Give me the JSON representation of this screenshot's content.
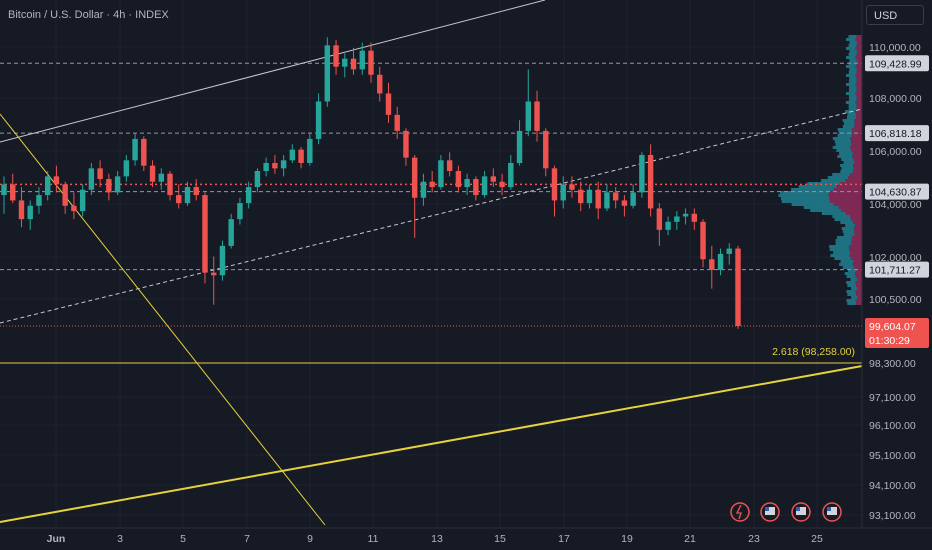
{
  "header": {
    "title": "Bitcoin / U.S. Dollar · 4h · INDEX",
    "currency": "USD"
  },
  "colors": {
    "background": "#161a25",
    "up": "#26a69a",
    "down": "#ef5350",
    "fib": "#e6d23c",
    "profile_up": "#1f7b8c",
    "profile_down": "#8a2a5a"
  },
  "chart_data": {
    "type": "candlestick",
    "y_ticks": [
      "110,000.00",
      "108,000.00",
      "106,000.00",
      "104,000.00",
      "102,000.00",
      "100,500.00",
      "98,300.00",
      "97,100.00",
      "96,100.00",
      "95,100.00",
      "94,100.00",
      "93,100.00"
    ],
    "x_ticks": [
      "Jun",
      "3",
      "5",
      "7",
      "9",
      "11",
      "13",
      "15",
      "17",
      "19",
      "21",
      "23",
      "25"
    ],
    "price_labels": [
      {
        "text": "109,428.99",
        "kind": "level"
      },
      {
        "text": "106,818.18",
        "kind": "level"
      },
      {
        "text": "104,630.87",
        "kind": "level"
      },
      {
        "text": "101,711.27",
        "kind": "level"
      }
    ],
    "last_price": "99,604.07",
    "countdown": "01:30:29",
    "fib_label": "2.618 (98,258.00)",
    "candles": [
      [
        104500,
        105200,
        103800,
        104900
      ],
      [
        104900,
        105300,
        104200,
        104300
      ],
      [
        104300,
        104800,
        103300,
        103600
      ],
      [
        103600,
        104300,
        103200,
        104100
      ],
      [
        104100,
        104800,
        103800,
        104500
      ],
      [
        104500,
        105400,
        104300,
        105200
      ],
      [
        105200,
        105600,
        104600,
        104900
      ],
      [
        104900,
        105000,
        103800,
        104100
      ],
      [
        104100,
        104600,
        103600,
        103900
      ],
      [
        103900,
        104900,
        103700,
        104700
      ],
      [
        104700,
        105700,
        104500,
        105500
      ],
      [
        105500,
        105800,
        104800,
        105100
      ],
      [
        105100,
        105300,
        104300,
        104600
      ],
      [
        104600,
        105400,
        104500,
        105200
      ],
      [
        105200,
        106000,
        105000,
        105800
      ],
      [
        105800,
        106800,
        105600,
        106600
      ],
      [
        106600,
        106700,
        105400,
        105600
      ],
      [
        105600,
        105800,
        104800,
        105000
      ],
      [
        105000,
        105500,
        104700,
        105300
      ],
      [
        105300,
        105400,
        104300,
        104500
      ],
      [
        104500,
        104900,
        104000,
        104200
      ],
      [
        104200,
        105000,
        104100,
        104800
      ],
      [
        104800,
        105100,
        104300,
        104500
      ],
      [
        104500,
        104600,
        101200,
        101600
      ],
      [
        101600,
        102200,
        100400,
        101500
      ],
      [
        101500,
        102800,
        101300,
        102600
      ],
      [
        102600,
        103800,
        102500,
        103600
      ],
      [
        103600,
        104400,
        103400,
        104200
      ],
      [
        104200,
        105000,
        104000,
        104800
      ],
      [
        104800,
        105500,
        104600,
        105400
      ],
      [
        105400,
        105900,
        105200,
        105700
      ],
      [
        105700,
        106000,
        105300,
        105500
      ],
      [
        105500,
        106000,
        105200,
        105800
      ],
      [
        105800,
        106400,
        105700,
        106200
      ],
      [
        106200,
        106300,
        105500,
        105700
      ],
      [
        105700,
        106800,
        105600,
        106600
      ],
      [
        106600,
        108300,
        106400,
        108000
      ],
      [
        108000,
        110400,
        107800,
        110100
      ],
      [
        110100,
        110300,
        109000,
        109300
      ],
      [
        109300,
        109800,
        108900,
        109600
      ],
      [
        109600,
        110000,
        109000,
        109200
      ],
      [
        109200,
        110200,
        109000,
        109900
      ],
      [
        109900,
        110200,
        108700,
        109000
      ],
      [
        109000,
        109300,
        108000,
        108300
      ],
      [
        108300,
        108700,
        107200,
        107500
      ],
      [
        107500,
        107800,
        106600,
        106900
      ],
      [
        106900,
        107000,
        105600,
        105900
      ],
      [
        105900,
        106000,
        102900,
        104400
      ],
      [
        104400,
        105300,
        104100,
        105000
      ],
      [
        105000,
        105400,
        104600,
        104800
      ],
      [
        104800,
        106000,
        104700,
        105800
      ],
      [
        105800,
        106100,
        105200,
        105400
      ],
      [
        105400,
        105600,
        104600,
        104800
      ],
      [
        104800,
        105300,
        104500,
        105100
      ],
      [
        105100,
        105200,
        104300,
        104500
      ],
      [
        104500,
        105400,
        104400,
        105200
      ],
      [
        105200,
        105500,
        104800,
        105000
      ],
      [
        105000,
        105300,
        104500,
        104800
      ],
      [
        104800,
        106000,
        104700,
        105700
      ],
      [
        105700,
        107300,
        105600,
        106900
      ],
      [
        106900,
        109200,
        106700,
        108000
      ],
      [
        108000,
        108400,
        106500,
        106900
      ],
      [
        106900,
        107000,
        105200,
        105500
      ],
      [
        105500,
        105600,
        103700,
        104300
      ],
      [
        104300,
        105200,
        104000,
        104900
      ],
      [
        104900,
        105200,
        104400,
        104700
      ],
      [
        104700,
        105000,
        103900,
        104200
      ],
      [
        104200,
        104900,
        104000,
        104700
      ],
      [
        104700,
        105000,
        103600,
        104000
      ],
      [
        104000,
        104900,
        103900,
        104600
      ],
      [
        104600,
        104800,
        104000,
        104300
      ],
      [
        104300,
        104500,
        103700,
        104100
      ],
      [
        104100,
        104900,
        104000,
        104600
      ],
      [
        104600,
        106100,
        104400,
        106000
      ],
      [
        106000,
        106400,
        103700,
        104000
      ],
      [
        104000,
        104200,
        102600,
        103200
      ],
      [
        103200,
        103700,
        103000,
        103500
      ],
      [
        103500,
        103900,
        103200,
        103700
      ],
      [
        103700,
        104000,
        103400,
        103800
      ],
      [
        103800,
        104000,
        103200,
        103500
      ],
      [
        103500,
        103600,
        101800,
        102100
      ],
      [
        102100,
        102600,
        101000,
        101700
      ],
      [
        101700,
        102500,
        101500,
        102300
      ],
      [
        102300,
        102700,
        101900,
        102500
      ],
      [
        102500,
        102600,
        99500,
        99604
      ]
    ]
  }
}
